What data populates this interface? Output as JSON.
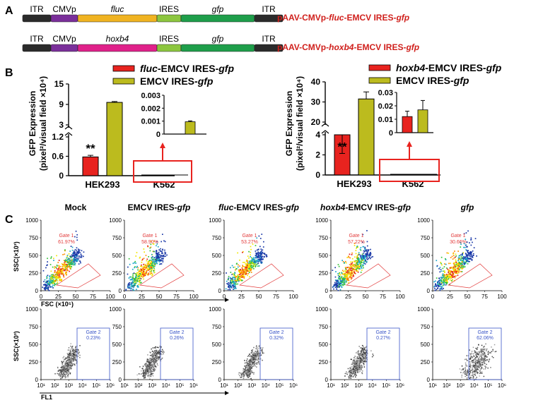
{
  "panels": {
    "a": "A",
    "b": "B",
    "c": "C"
  },
  "constructs": [
    {
      "segments": [
        {
          "label": "ITR",
          "italic": false,
          "color": "#2b2b2b"
        },
        {
          "label": "CMVp",
          "italic": false,
          "color": "#7a2f9a"
        },
        {
          "label": "fluc",
          "italic": true,
          "color": "#f0b321"
        },
        {
          "label": "IRES",
          "italic": false,
          "color": "#8cc63f"
        },
        {
          "label": "gfp",
          "italic": true,
          "color": "#1e9e4a"
        },
        {
          "label": "ITR",
          "italic": false,
          "color": "#2b2b2b"
        }
      ],
      "name_parts": [
        {
          "text": "pAAV-CMVp-",
          "italic": false
        },
        {
          "text": "fluc",
          "italic": true
        },
        {
          "text": "-EMCV IRES-",
          "italic": false
        },
        {
          "text": "gfp",
          "italic": true
        }
      ]
    },
    {
      "segments": [
        {
          "label": "ITR",
          "italic": false,
          "color": "#2b2b2b"
        },
        {
          "label": "CMVp",
          "italic": false,
          "color": "#7a2f9a"
        },
        {
          "label": "hoxb4",
          "italic": true,
          "color": "#e0218a"
        },
        {
          "label": "IRES",
          "italic": false,
          "color": "#8cc63f"
        },
        {
          "label": "gfp",
          "italic": true,
          "color": "#1e9e4a"
        },
        {
          "label": "ITR",
          "italic": false,
          "color": "#2b2b2b"
        }
      ],
      "name_parts": [
        {
          "text": "pAAV-CMVp-",
          "italic": false
        },
        {
          "text": "hoxb4",
          "italic": true
        },
        {
          "text": "-EMCV IRES-",
          "italic": false
        },
        {
          "text": "gfp",
          "italic": true
        }
      ]
    }
  ],
  "colors": {
    "red": "#e8231f",
    "olive": "#bcbb1e",
    "construct_name": "#d0201c",
    "gate_red": "#e23a3a",
    "gate_blue": "#3a55c8"
  },
  "chart_data": [
    {
      "type": "bar",
      "ylabel_line1": "GFP Expression",
      "ylabel_line2": "(pixel²/visual field ×10⁴)",
      "legend": [
        [
          {
            "text": "fluc",
            "italic": true
          },
          {
            "text": "-EMCV IRES-",
            "italic": false
          },
          {
            "text": "gfp",
            "italic": true
          }
        ],
        [
          {
            "text": "EMCV IRES-",
            "italic": false
          },
          {
            "text": "gfp",
            "italic": true
          }
        ]
      ],
      "categories": [
        "HEK293",
        "K562"
      ],
      "series": [
        {
          "name": "fluc-EMCV IRES-gfp",
          "color": "#e8231f",
          "values": [
            0.58,
            0.0
          ],
          "errors": [
            0.05,
            0.0
          ]
        },
        {
          "name": "EMCV IRES-gfp",
          "color": "#bcbb1e",
          "values": [
            9.6,
            0.00095
          ],
          "errors": [
            0.25,
            7e-05
          ]
        }
      ],
      "axis_lower": {
        "range": [
          0,
          1.2
        ],
        "ticks": [
          "0",
          "0.6",
          "1.2"
        ]
      },
      "axis_upper": {
        "range": [
          3,
          15
        ],
        "ticks": [
          "3",
          "9",
          "15"
        ]
      },
      "significance": "**",
      "inset": {
        "category": "K562",
        "range": [
          0,
          0.003
        ],
        "ticks": [
          "0",
          "0.001",
          "0.002",
          "0.003"
        ],
        "values": [
          0.0,
          0.00095
        ],
        "errors": [
          0.0,
          7e-05
        ]
      }
    },
    {
      "type": "bar",
      "ylabel_line1": "GFP Expression",
      "ylabel_line2": "(pixel²/visual field ×10⁴)",
      "legend": [
        [
          {
            "text": "hoxb4",
            "italic": true
          },
          {
            "text": "-EMCV IRES-",
            "italic": false
          },
          {
            "text": "gfp",
            "italic": true
          }
        ],
        [
          {
            "text": "EMCV IRES-",
            "italic": false
          },
          {
            "text": "gfp",
            "italic": true
          }
        ]
      ],
      "categories": [
        "HEK293",
        "K562"
      ],
      "series": [
        {
          "name": "hoxb4-EMCV IRES-gfp",
          "color": "#e8231f",
          "values": [
            4.0,
            0.012
          ],
          "errors": [
            0.4,
            0.004
          ]
        },
        {
          "name": "EMCV IRES-gfp",
          "color": "#bcbb1e",
          "values": [
            31.5,
            0.017
          ],
          "errors": [
            3.5,
            0.007
          ]
        }
      ],
      "axis_lower": {
        "range": [
          0,
          4
        ],
        "ticks": [
          "0",
          "2",
          "4"
        ]
      },
      "axis_upper": {
        "range": [
          20,
          40
        ],
        "ticks": [
          "20",
          "30",
          "40"
        ]
      },
      "significance": "**",
      "inset": {
        "category": "K562",
        "range": [
          0,
          0.03
        ],
        "ticks": [
          "0",
          "0.01",
          "0.02",
          "0.03"
        ],
        "values": [
          0.012,
          0.017
        ],
        "errors": [
          0.004,
          0.007
        ]
      }
    },
    {
      "type": "scatter",
      "columns": [
        {
          "title_parts": [
            {
              "text": "Mock",
              "italic": false
            }
          ],
          "scatter_gate": {
            "name": "Gate 1",
            "percent": "61.97%"
          },
          "fl1_gate": {
            "name": "Gate 2",
            "percent": "0.23%"
          },
          "gfp_shift": false
        },
        {
          "title_parts": [
            {
              "text": "EMCV IRES-",
              "italic": false
            },
            {
              "text": "gfp",
              "italic": true
            }
          ],
          "scatter_gate": {
            "name": "Gate 1",
            "percent": "58.90%"
          },
          "fl1_gate": {
            "name": "Gate 2",
            "percent": "0.26%"
          },
          "gfp_shift": false
        },
        {
          "title_parts": [
            {
              "text": "fluc",
              "italic": true
            },
            {
              "text": "-EMCV IRES-",
              "italic": false
            },
            {
              "text": "gfp",
              "italic": true
            }
          ],
          "scatter_gate": {
            "name": "Gate 1",
            "percent": "53.27%"
          },
          "fl1_gate": {
            "name": "Gate 2",
            "percent": "0.32%"
          },
          "gfp_shift": false
        },
        {
          "title_parts": [
            {
              "text": "hoxb4",
              "italic": true
            },
            {
              "text": "-EMCV IRES-",
              "italic": false
            },
            {
              "text": "gfp",
              "italic": true
            }
          ],
          "scatter_gate": {
            "name": "Gate 1",
            "percent": "57.22%"
          },
          "fl1_gate": {
            "name": "Gate 2",
            "percent": "0.27%"
          },
          "gfp_shift": false
        },
        {
          "title_parts": [
            {
              "text": "gfp",
              "italic": true
            }
          ],
          "scatter_gate": {
            "name": "Gate 1",
            "percent": "30.66%"
          },
          "fl1_gate": {
            "name": "Gate 2",
            "percent": "62.06%"
          },
          "gfp_shift": true
        }
      ],
      "fsc_axis": {
        "label": "FSC (×10⁵)",
        "range": [
          0,
          100
        ],
        "ticks": [
          "0",
          "25",
          "50",
          "75",
          "100"
        ]
      },
      "ssc_axis": {
        "label": "SSC(×10³)",
        "range": [
          0,
          1000
        ],
        "ticks": [
          "0",
          "250",
          "500",
          "750",
          "1000"
        ]
      },
      "fl1_axis": {
        "label": "FL1",
        "ticks": [
          "10¹",
          "10²",
          "10³",
          "10⁴",
          "10⁵",
          "10⁶"
        ]
      }
    }
  ]
}
